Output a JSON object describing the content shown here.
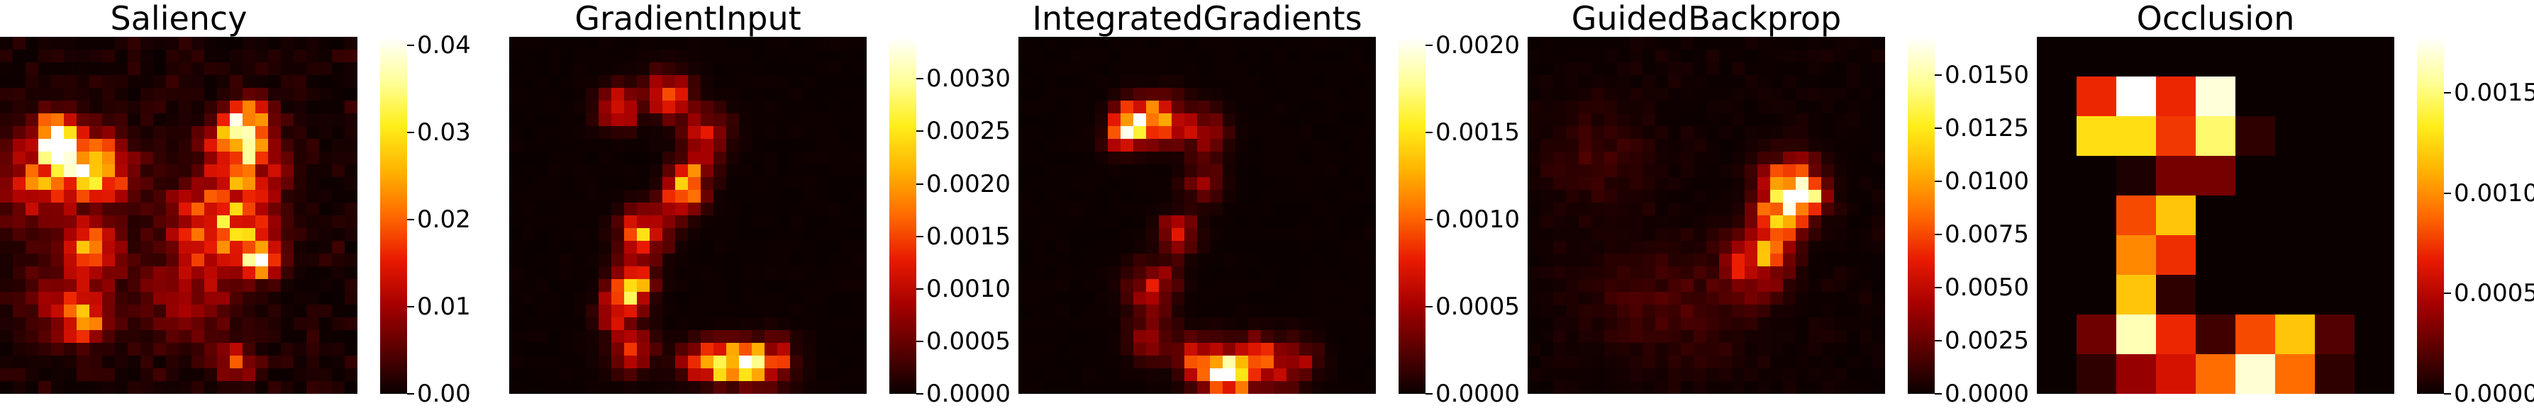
{
  "colormap": [
    "#0b0000",
    "#5a0000",
    "#a60000",
    "#e91a00",
    "#ff6a00",
    "#ffb300",
    "#ffee1a",
    "#ffff99",
    "#ffffff"
  ],
  "chart_data": [
    {
      "type": "heatmap",
      "title": "Saliency",
      "grid": [
        28,
        28
      ],
      "vmin": 0,
      "vmax": 0.041,
      "colorbar_ticks": [
        "0.00",
        "0.01",
        "0.02",
        "0.03",
        "0.04"
      ],
      "hotspots": [
        {
          "col": 4,
          "row": 7,
          "sigma": 1.0,
          "value": 0.041
        },
        {
          "col": 5,
          "row": 9,
          "sigma": 1.6,
          "value": 0.032
        },
        {
          "col": 3,
          "row": 11,
          "sigma": 2.4,
          "value": 0.018
        },
        {
          "col": 8,
          "row": 10,
          "sigma": 1.6,
          "value": 0.02
        },
        {
          "col": 7,
          "row": 16,
          "sigma": 1.2,
          "value": 0.028
        },
        {
          "col": 5,
          "row": 20,
          "sigma": 2.2,
          "value": 0.013
        },
        {
          "col": 6,
          "row": 22,
          "sigma": 1.0,
          "value": 0.02
        },
        {
          "col": 19,
          "row": 6,
          "sigma": 1.0,
          "value": 0.034
        },
        {
          "col": 18,
          "row": 8,
          "sigma": 1.4,
          "value": 0.026
        },
        {
          "col": 19,
          "row": 10,
          "sigma": 2.0,
          "value": 0.014
        },
        {
          "col": 18,
          "row": 15,
          "sigma": 2.0,
          "value": 0.018
        },
        {
          "col": 20,
          "row": 17,
          "sigma": 1.0,
          "value": 0.026
        },
        {
          "col": 16,
          "row": 14,
          "sigma": 2.4,
          "value": 0.015
        },
        {
          "col": 14,
          "row": 20,
          "sigma": 2.4,
          "value": 0.01
        },
        {
          "col": 18,
          "row": 25,
          "sigma": 1.0,
          "value": 0.016
        }
      ],
      "background": 0.0035,
      "seed": 11
    },
    {
      "type": "heatmap",
      "title": "GradientInput",
      "grid": [
        28,
        28
      ],
      "vmin": 0,
      "vmax": 0.0034,
      "colorbar_ticks": [
        "0.0000",
        "0.0005",
        "0.0010",
        "0.0015",
        "0.0020",
        "0.0025",
        "0.0030"
      ],
      "hotspots": [
        {
          "col": 8,
          "row": 5,
          "sigma": 1.0,
          "value": 0.0019
        },
        {
          "col": 12,
          "row": 4,
          "sigma": 1.2,
          "value": 0.0016
        },
        {
          "col": 15,
          "row": 7,
          "sigma": 1.2,
          "value": 0.0012
        },
        {
          "col": 14,
          "row": 10,
          "sigma": 1.0,
          "value": 0.0014
        },
        {
          "col": 13,
          "row": 12,
          "sigma": 1.0,
          "value": 0.0024
        },
        {
          "col": 10,
          "row": 15,
          "sigma": 1.2,
          "value": 0.0022
        },
        {
          "col": 9,
          "row": 19,
          "sigma": 1.0,
          "value": 0.0032
        },
        {
          "col": 8,
          "row": 21,
          "sigma": 1.0,
          "value": 0.0015
        },
        {
          "col": 9,
          "row": 24,
          "sigma": 1.2,
          "value": 0.0012
        },
        {
          "col": 14,
          "row": 25,
          "sigma": 1.0,
          "value": 0.001
        },
        {
          "col": 16,
          "row": 25,
          "sigma": 1.0,
          "value": 0.0033
        },
        {
          "col": 18,
          "row": 25,
          "sigma": 1.0,
          "value": 0.0026
        },
        {
          "col": 20,
          "row": 25,
          "sigma": 1.2,
          "value": 0.0018
        }
      ],
      "background": 4e-05,
      "seed": 23
    },
    {
      "type": "heatmap",
      "title": "IntegratedGradients",
      "grid": [
        28,
        28
      ],
      "vmin": 0,
      "vmax": 0.00205,
      "colorbar_ticks": [
        "0.0000",
        "0.0005",
        "0.0010",
        "0.0015",
        "0.0020"
      ],
      "hotspots": [
        {
          "col": 9,
          "row": 6,
          "sigma": 1.0,
          "value": 0.0017
        },
        {
          "col": 8,
          "row": 7,
          "sigma": 1.0,
          "value": 0.0012
        },
        {
          "col": 11,
          "row": 6,
          "sigma": 1.2,
          "value": 0.0008
        },
        {
          "col": 14,
          "row": 7,
          "sigma": 1.2,
          "value": 0.0006
        },
        {
          "col": 14,
          "row": 11,
          "sigma": 1.0,
          "value": 0.0005
        },
        {
          "col": 12,
          "row": 15,
          "sigma": 1.0,
          "value": 0.0009
        },
        {
          "col": 10,
          "row": 19,
          "sigma": 1.2,
          "value": 0.0008
        },
        {
          "col": 10,
          "row": 23,
          "sigma": 1.2,
          "value": 0.0006
        },
        {
          "col": 14,
          "row": 25,
          "sigma": 1.2,
          "value": 0.0011
        },
        {
          "col": 16,
          "row": 26,
          "sigma": 1.0,
          "value": 0.00205
        },
        {
          "col": 18,
          "row": 25,
          "sigma": 1.2,
          "value": 0.0012
        },
        {
          "col": 21,
          "row": 25,
          "sigma": 1.2,
          "value": 0.0007
        }
      ],
      "background": 2e-05,
      "seed": 37
    },
    {
      "type": "heatmap",
      "title": "GuidedBackprop",
      "grid": [
        28,
        28
      ],
      "vmin": 0,
      "vmax": 0.0168,
      "colorbar_ticks": [
        "0.0000",
        "0.0025",
        "0.0050",
        "0.0075",
        "0.0100",
        "0.0125",
        "0.0150"
      ],
      "hotspots": [
        {
          "col": 21,
          "row": 12,
          "sigma": 1.0,
          "value": 0.0168
        },
        {
          "col": 20,
          "row": 11,
          "sigma": 1.4,
          "value": 0.011
        },
        {
          "col": 19,
          "row": 14,
          "sigma": 1.2,
          "value": 0.0095
        },
        {
          "col": 18,
          "row": 16,
          "sigma": 1.4,
          "value": 0.007
        },
        {
          "col": 17,
          "row": 18,
          "sigma": 1.6,
          "value": 0.005
        },
        {
          "col": 5,
          "row": 9,
          "sigma": 2.6,
          "value": 0.0016
        },
        {
          "col": 8,
          "row": 20,
          "sigma": 3.0,
          "value": 0.0012
        },
        {
          "col": 13,
          "row": 21,
          "sigma": 3.0,
          "value": 0.0012
        }
      ],
      "background": 0.0006,
      "seed": 53
    },
    {
      "type": "heatmap",
      "title": "Occlusion",
      "grid": [
        9,
        9
      ],
      "vmin": 0,
      "vmax": 0.00178,
      "colorbar_ticks": [
        "0.0000",
        "0.0005",
        "0.0010",
        "0.0015"
      ],
      "values": [
        [
          0,
          0,
          0,
          0,
          0,
          0,
          0,
          0,
          0
        ],
        [
          0,
          0.0007,
          0.00178,
          0.0007,
          0.0017,
          0,
          0,
          0,
          0
        ],
        [
          0,
          0.00128,
          0.00128,
          0.00075,
          0.00148,
          0.0001,
          0,
          0,
          0
        ],
        [
          0,
          0,
          5e-05,
          0.0003,
          0.0003,
          0,
          0,
          0,
          0
        ],
        [
          0,
          0,
          0.0008,
          0.00118,
          0,
          0,
          0,
          0,
          0
        ],
        [
          0,
          0,
          0.00098,
          0.00072,
          0,
          0,
          0,
          0,
          0
        ],
        [
          0,
          0,
          0.00118,
          0.0001,
          0,
          0,
          0,
          0,
          0
        ],
        [
          0,
          0.00028,
          0.00162,
          0.0007,
          0.00015,
          0.0008,
          0.00118,
          0.0002,
          0
        ],
        [
          0,
          0.0001,
          0.0004,
          0.0006,
          0.0009,
          0.00168,
          0.0009,
          0.0001,
          0
        ]
      ]
    }
  ]
}
